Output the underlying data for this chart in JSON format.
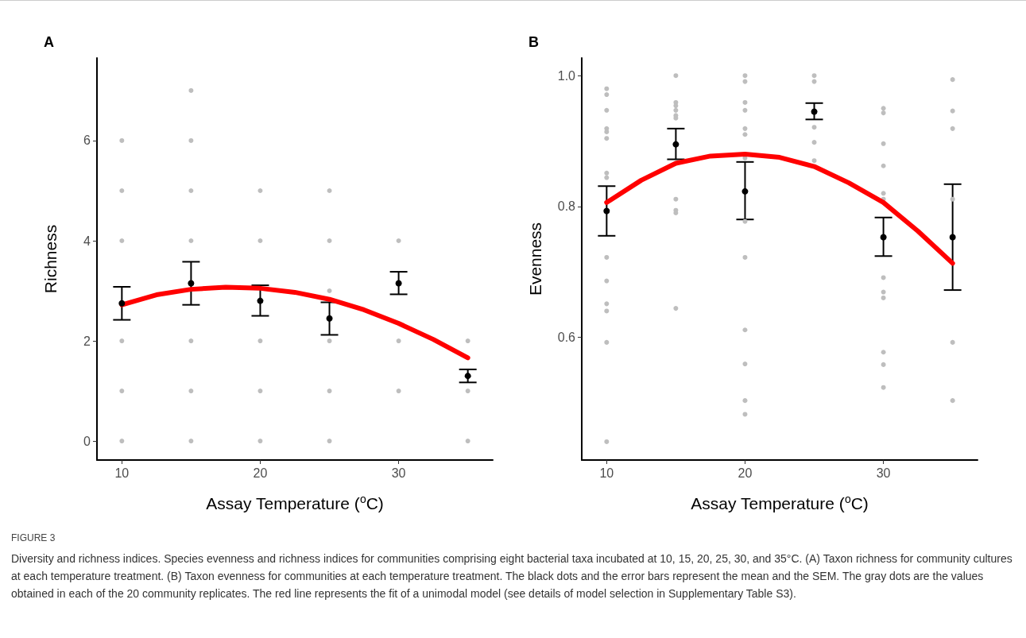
{
  "chart_data": [
    {
      "type": "scatter",
      "title": "A",
      "xlabel": "Assay Temperature ($^{o}$C)",
      "ylabel": "Richness",
      "xlim": [
        8.2,
        36.8
      ],
      "xticks": [
        10,
        20,
        30
      ],
      "ylim": [
        -0.38,
        7.65
      ],
      "yticks": [
        0,
        2,
        4,
        6
      ],
      "grid": false,
      "series": [
        {
          "color": "#bebebe",
          "x": [
            10,
            10,
            10,
            10,
            10,
            10,
            15,
            15,
            15,
            15,
            15,
            15,
            15,
            20,
            20,
            20,
            20,
            20,
            25,
            25,
            25,
            25,
            25,
            25,
            30,
            30,
            30,
            35,
            35,
            35
          ],
          "values": [
            0,
            1,
            2,
            4,
            5,
            6,
            0,
            1,
            2,
            4,
            5,
            6,
            7,
            0,
            1,
            2,
            4,
            5,
            0,
            1,
            2,
            3,
            4,
            5,
            1,
            2,
            4,
            0,
            1,
            2
          ]
        },
        {
          "color": "#000000",
          "x": [
            10,
            15,
            20,
            25,
            30,
            35
          ],
          "values": [
            2.75,
            3.15,
            2.8,
            2.45,
            3.15,
            1.3
          ],
          "errors": [
            [
              2.42,
              3.08
            ],
            [
              2.72,
              3.58
            ],
            [
              2.5,
              3.11
            ],
            [
              2.12,
              2.77
            ],
            [
              2.93,
              3.38
            ],
            [
              1.17,
              1.43
            ]
          ]
        },
        {
          "type": "line",
          "color": "#ff0000",
          "marker": "none",
          "x": [
            10,
            12.5,
            15,
            17.5,
            20,
            22.5,
            25,
            27.5,
            30,
            32.5,
            35
          ],
          "values": [
            2.72,
            2.92,
            3.03,
            3.07,
            3.05,
            2.97,
            2.83,
            2.62,
            2.35,
            2.03,
            1.66
          ]
        }
      ],
      "annotations": [
        "FIGURE 3",
        "Diversity and richness indices. Species evenness and richness indices for communities comprising eight bacterial taxa incubated at 10, 15, 20, 25, 30, and 35°C. (A) Taxon richness for community cultures at each temperature treatment. (B) Taxon evenness for communities at each temperature treatment. The black dots and the error bars represent the mean and the SEM. The gray dots are the values obtained in each of the 20 community replicates. The red line represents the fit of a unimodal model (see details of model selection in Supplementary Table S3)."
      ]
    },
    {
      "type": "scatter",
      "title": "B",
      "xlabel": "Assay Temperature ($^{o}$C)",
      "ylabel": "Evenness",
      "xlim": [
        8.2,
        36.8
      ],
      "xticks": [
        10,
        20,
        30
      ],
      "ylim": [
        0.412,
        1.027
      ],
      "yticks": [
        {
          "value": 0.6,
          "label": "0.6"
        },
        {
          "value": 0.8,
          "label": "0.8"
        },
        {
          "value": 1,
          "label": "1.0"
        }
      ],
      "grid": false,
      "series": [
        {
          "color": "#bebebe",
          "x": [
            10,
            10,
            10,
            10,
            10,
            10,
            10,
            10,
            10,
            10,
            10,
            10,
            10,
            10,
            15,
            15,
            15,
            15,
            15,
            15,
            15,
            15,
            15,
            15,
            20,
            20,
            20,
            20,
            20,
            20,
            20,
            20,
            20,
            20,
            20,
            20,
            20,
            25,
            25,
            25,
            25,
            25,
            30,
            30,
            30,
            30,
            30,
            30,
            30,
            30,
            30,
            30,
            30,
            30,
            35,
            35,
            35,
            35,
            35,
            35
          ],
          "values": [
            0.98,
            0.971,
            0.947,
            0.919,
            0.914,
            0.904,
            0.851,
            0.844,
            0.722,
            0.686,
            0.651,
            0.64,
            0.592,
            0.44,
            1.0,
            0.959,
            0.954,
            0.947,
            0.939,
            0.935,
            0.811,
            0.794,
            0.79,
            0.644,
            1.0,
            0.991,
            0.959,
            0.947,
            0.919,
            0.91,
            0.874,
            0.777,
            0.722,
            0.611,
            0.559,
            0.503,
            0.482,
            1.0,
            0.991,
            0.921,
            0.898,
            0.87,
            0.95,
            0.943,
            0.896,
            0.862,
            0.82,
            0.811,
            0.691,
            0.669,
            0.66,
            0.577,
            0.558,
            0.523,
            0.994,
            0.946,
            0.919,
            0.811,
            0.592,
            0.503
          ]
        },
        {
          "color": "#000000",
          "x": [
            10,
            15,
            20,
            25,
            30,
            35
          ],
          "values": [
            0.793,
            0.895,
            0.823,
            0.945,
            0.753,
            0.753
          ],
          "errors": [
            [
              0.755,
              0.831
            ],
            [
              0.872,
              0.919
            ],
            [
              0.78,
              0.868
            ],
            [
              0.933,
              0.958
            ],
            [
              0.724,
              0.783
            ],
            [
              0.672,
              0.834
            ]
          ]
        },
        {
          "type": "line",
          "color": "#ff0000",
          "marker": "none",
          "x": [
            10,
            12.5,
            15,
            17.5,
            20,
            22.5,
            25,
            27.5,
            30,
            32.5,
            35
          ],
          "values": [
            0.806,
            0.84,
            0.866,
            0.877,
            0.88,
            0.875,
            0.861,
            0.836,
            0.806,
            0.762,
            0.713
          ]
        }
      ]
    }
  ]
}
